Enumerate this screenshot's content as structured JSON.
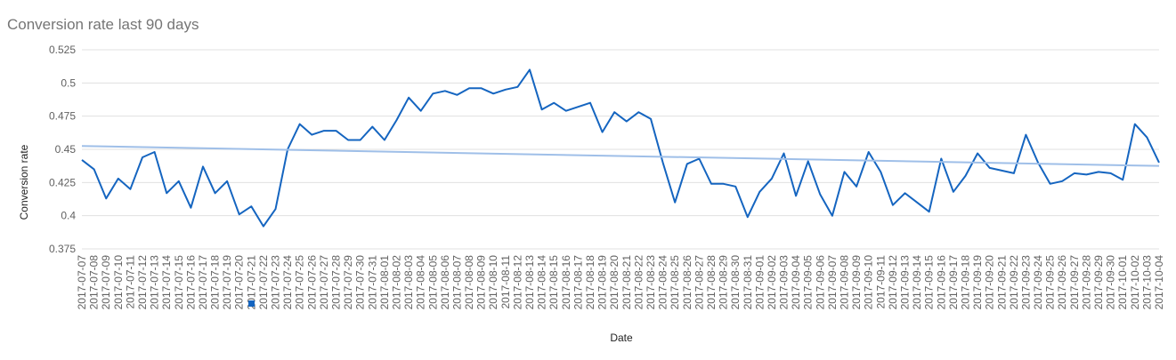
{
  "chart_data": {
    "type": "line",
    "title": "Conversion rate last 90 days",
    "xlabel": "Date",
    "ylabel": "Conversion rate",
    "ylim": [
      0.375,
      0.525
    ],
    "yticks": [
      "0.375",
      "0.4",
      "0.425",
      "0.45",
      "0.475",
      "0.5",
      "0.525"
    ],
    "grid": true,
    "legend": "bottom",
    "x": [
      "2017-07-07",
      "2017-07-08",
      "2017-07-09",
      "2017-07-10",
      "2017-07-11",
      "2017-07-12",
      "2017-07-13",
      "2017-07-14",
      "2017-07-15",
      "2017-07-16",
      "2017-07-17",
      "2017-07-18",
      "2017-07-19",
      "2017-07-20",
      "2017-07-21",
      "2017-07-22",
      "2017-07-23",
      "2017-07-24",
      "2017-07-25",
      "2017-07-26",
      "2017-07-27",
      "2017-07-28",
      "2017-07-29",
      "2017-07-30",
      "2017-07-31",
      "2017-08-01",
      "2017-08-02",
      "2017-08-03",
      "2017-08-04",
      "2017-08-05",
      "2017-08-06",
      "2017-08-07",
      "2017-08-08",
      "2017-08-09",
      "2017-08-10",
      "2017-08-11",
      "2017-08-12",
      "2017-08-13",
      "2017-08-14",
      "2017-08-15",
      "2017-08-16",
      "2017-08-17",
      "2017-08-18",
      "2017-08-19",
      "2017-08-20",
      "2017-08-21",
      "2017-08-22",
      "2017-08-23",
      "2017-08-24",
      "2017-08-25",
      "2017-08-26",
      "2017-08-27",
      "2017-08-28",
      "2017-08-29",
      "2017-08-30",
      "2017-08-31",
      "2017-09-01",
      "2017-09-02",
      "2017-09-03",
      "2017-09-04",
      "2017-09-05",
      "2017-09-06",
      "2017-09-07",
      "2017-09-08",
      "2017-09-09",
      "2017-09-10",
      "2017-09-11",
      "2017-09-12",
      "2017-09-13",
      "2017-09-14",
      "2017-09-15",
      "2017-09-16",
      "2017-09-17",
      "2017-09-18",
      "2017-09-19",
      "2017-09-20",
      "2017-09-21",
      "2017-09-22",
      "2017-09-23",
      "2017-09-24",
      "2017-09-25",
      "2017-09-26",
      "2017-09-27",
      "2017-09-28",
      "2017-09-29",
      "2017-09-30",
      "2017-10-01",
      "2017-10-02",
      "2017-10-03",
      "2017-10-04"
    ],
    "series": [
      {
        "values": [
          0.442,
          0.435,
          0.413,
          0.428,
          0.42,
          0.444,
          0.448,
          0.417,
          0.426,
          0.406,
          0.437,
          0.417,
          0.426,
          0.401,
          0.407,
          0.392,
          0.405,
          0.45,
          0.469,
          0.461,
          0.464,
          0.464,
          0.457,
          0.457,
          0.467,
          0.457,
          0.472,
          0.489,
          0.479,
          0.492,
          0.494,
          0.491,
          0.496,
          0.496,
          0.492,
          0.495,
          0.497,
          0.51,
          0.48,
          0.485,
          0.479,
          0.482,
          0.485,
          0.463,
          0.478,
          0.471,
          0.478,
          0.473,
          0.44,
          0.41,
          0.439,
          0.443,
          0.424,
          0.424,
          0.422,
          0.399,
          0.418,
          0.428,
          0.447,
          0.415,
          0.441,
          0.416,
          0.4,
          0.433,
          0.422,
          0.448,
          0.433,
          0.408,
          0.417,
          0.41,
          0.403,
          0.443,
          0.418,
          0.43,
          0.447,
          0.436,
          0.434,
          0.432,
          0.461,
          0.44,
          0.424,
          0.426,
          0.432,
          0.431,
          0.433,
          0.432,
          0.427,
          0.469,
          0.459,
          0.44
        ],
        "color": "#1565c0"
      },
      {
        "type": "trendline",
        "start": 0.4525,
        "end": 0.4375,
        "color": "#9fbfe8"
      }
    ]
  }
}
